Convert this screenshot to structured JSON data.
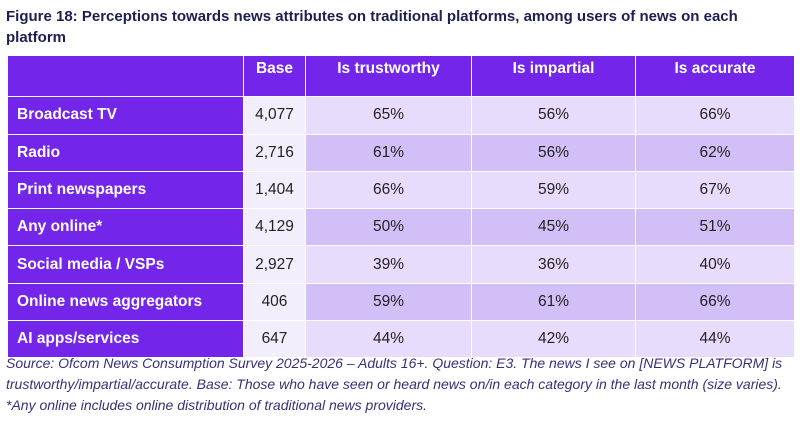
{
  "title": "Figure 18: Perceptions towards news attributes on traditional platforms, among users of news on each platform",
  "source": "Source: Ofcom News Consumption Survey 2025-2026 – Adults 16+. Question: E3. The news I see on [NEWS PLATFORM] is trustworthy/impartial/accurate. Base: Those who have seen or heard news on/in each category in the last month (size varies). *Any online includes online distribution of traditional news providers.",
  "colors": {
    "header": "#7326ea",
    "base_cell": "#f3eefc",
    "row_light": "#e7dcfb",
    "row_dark": "#d3bff7"
  },
  "chart_data": {
    "type": "table",
    "columns": [
      "",
      "Base",
      "Is trustworthy",
      "Is impartial",
      "Is accurate"
    ],
    "rows": [
      {
        "platform": "Broadcast TV",
        "base": "4,077",
        "trustworthy": "65%",
        "impartial": "56%",
        "accurate": "66%"
      },
      {
        "platform": "Radio",
        "base": "2,716",
        "trustworthy": "61%",
        "impartial": "56%",
        "accurate": "62%"
      },
      {
        "platform": "Print newspapers",
        "base": "1,404",
        "trustworthy": "66%",
        "impartial": "59%",
        "accurate": "67%"
      },
      {
        "platform": "Any online*",
        "base": "4,129",
        "trustworthy": "50%",
        "impartial": "45%",
        "accurate": "51%"
      },
      {
        "platform": "Social media / VSPs",
        "base": "2,927",
        "trustworthy": "39%",
        "impartial": "36%",
        "accurate": "40%"
      },
      {
        "platform": "Online news aggregators",
        "base": "406",
        "trustworthy": "59%",
        "impartial": "61%",
        "accurate": "66%"
      },
      {
        "platform": "AI apps/services",
        "base": "647",
        "trustworthy": "44%",
        "impartial": "42%",
        "accurate": "44%"
      }
    ]
  }
}
